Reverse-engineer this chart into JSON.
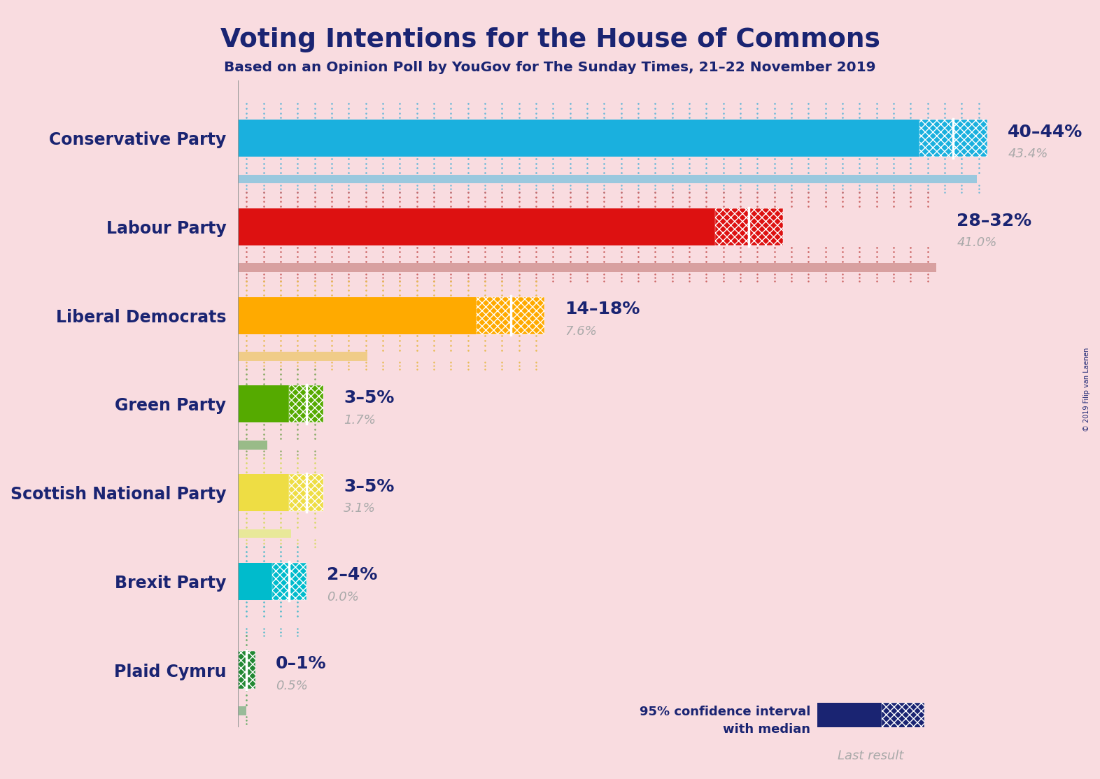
{
  "title": "Voting Intentions for the House of Commons",
  "subtitle": "Based on an Opinion Poll by YouGov for The Sunday Times, 21–22 November 2019",
  "copyright": "© 2019 Filip van Laenen",
  "background_color": "#f9dce0",
  "title_color": "#1a2472",
  "parties": [
    {
      "name": "Conservative Party",
      "ci_low": 40,
      "ci_high": 44,
      "median": 42,
      "last_result": 43.4,
      "bar_color": "#1ab0de",
      "last_color": "#9ac8de",
      "dot_color": "#6ab8d8",
      "label_range": "40–44%",
      "label_last": "43.4%"
    },
    {
      "name": "Labour Party",
      "ci_low": 28,
      "ci_high": 32,
      "median": 30,
      "last_result": 41.0,
      "bar_color": "#dd1111",
      "last_color": "#d8a0a0",
      "dot_color": "#cc6666",
      "label_range": "28–32%",
      "label_last": "41.0%"
    },
    {
      "name": "Liberal Democrats",
      "ci_low": 14,
      "ci_high": 18,
      "median": 16,
      "last_result": 7.6,
      "bar_color": "#ffaa00",
      "last_color": "#f0cc88",
      "dot_color": "#e8bb55",
      "label_range": "14–18%",
      "label_last": "7.6%"
    },
    {
      "name": "Green Party",
      "ci_low": 3,
      "ci_high": 5,
      "median": 4,
      "last_result": 1.7,
      "bar_color": "#55aa00",
      "last_color": "#99bb88",
      "dot_color": "#88aa66",
      "label_range": "3–5%",
      "label_last": "1.7%"
    },
    {
      "name": "Scottish National Party",
      "ci_low": 3,
      "ci_high": 5,
      "median": 4,
      "last_result": 3.1,
      "bar_color": "#eedd44",
      "last_color": "#e8e899",
      "dot_color": "#d8d866",
      "label_range": "3–5%",
      "label_last": "3.1%"
    },
    {
      "name": "Brexit Party",
      "ci_low": 2,
      "ci_high": 4,
      "median": 3,
      "last_result": 0.0,
      "bar_color": "#00bbcc",
      "last_color": "#88ccdd",
      "dot_color": "#55bbcc",
      "label_range": "2–4%",
      "label_last": "0.0%"
    },
    {
      "name": "Plaid Cymru",
      "ci_low": 0,
      "ci_high": 1,
      "median": 0.5,
      "last_result": 0.5,
      "bar_color": "#228833",
      "last_color": "#99bb99",
      "dot_color": "#66aa66",
      "label_range": "0–1%",
      "label_last": "0.5%"
    }
  ],
  "legend_solid_color": "#1a2472",
  "legend_last_color": "#aaaaaa",
  "x_max": 50
}
